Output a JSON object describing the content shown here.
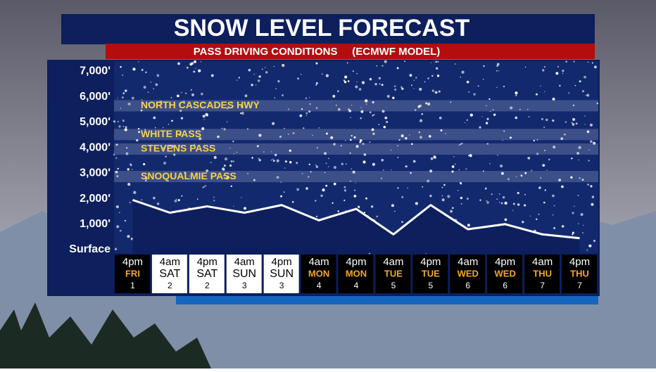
{
  "chart_data": {
    "type": "area",
    "title": "SNOW LEVEL FORECAST",
    "subtitle": "PASS DRIVING CONDITIONS     (ECMWF MODEL)",
    "categories": [
      {
        "time": "4pm",
        "day": "FRI",
        "date": "1",
        "box_color": "#000000",
        "day_color": "#f5a623"
      },
      {
        "time": "4am",
        "day": "SAT",
        "date": "2",
        "box_color": "#ffffff",
        "day_color": "#000000"
      },
      {
        "time": "4pm",
        "day": "SAT",
        "date": "2",
        "box_color": "#ffffff",
        "day_color": "#000000"
      },
      {
        "time": "4am",
        "day": "SUN",
        "date": "3",
        "box_color": "#ffffff",
        "day_color": "#000000"
      },
      {
        "time": "4pm",
        "day": "SUN",
        "date": "3",
        "box_color": "#ffffff",
        "day_color": "#000000"
      },
      {
        "time": "4am",
        "day": "MON",
        "date": "4",
        "box_color": "#000000",
        "day_color": "#f5a623"
      },
      {
        "time": "4pm",
        "day": "MON",
        "date": "4",
        "box_color": "#000000",
        "day_color": "#f5a623"
      },
      {
        "time": "4am",
        "day": "TUE",
        "date": "5",
        "box_color": "#000000",
        "day_color": "#f5a623"
      },
      {
        "time": "4pm",
        "day": "TUE",
        "date": "5",
        "box_color": "#000000",
        "day_color": "#f5a623"
      },
      {
        "time": "4am",
        "day": "WED",
        "date": "6",
        "box_color": "#000000",
        "day_color": "#f5a623"
      },
      {
        "time": "4pm",
        "day": "WED",
        "date": "6",
        "box_color": "#000000",
        "day_color": "#f5a623"
      },
      {
        "time": "4am",
        "day": "THU",
        "date": "7",
        "box_color": "#000000",
        "day_color": "#f5a623"
      },
      {
        "time": "4pm",
        "day": "THU",
        "date": "7",
        "box_color": "#000000",
        "day_color": "#f5a623"
      }
    ],
    "values": [
      1950,
      1450,
      1700,
      1450,
      1750,
      1150,
      1600,
      600,
      1750,
      800,
      1000,
      600,
      450
    ],
    "color": "#0d1f5c",
    "line_color": "#ffffff",
    "ylim": [
      0,
      7400
    ],
    "yticks": [
      {
        "value": 0,
        "label": "Surface"
      },
      {
        "value": 1000,
        "label": "1,000'"
      },
      {
        "value": 2000,
        "label": "2,000'"
      },
      {
        "value": 3000,
        "label": "3,000'"
      },
      {
        "value": 4000,
        "label": "4,000'"
      },
      {
        "value": 5000,
        "label": "5,000'"
      },
      {
        "value": 6000,
        "label": "6,000'"
      },
      {
        "value": 7000,
        "label": "7,000'"
      }
    ],
    "annotations": [
      {
        "text": "NORTH CASCADES HWY",
        "value": 5650
      },
      {
        "text": "WHITE PASS",
        "value": 4520
      },
      {
        "text": "STEVENS PASS",
        "value": 3950
      },
      {
        "text": "SNOQUALMIE PASS",
        "value": 2870
      }
    ]
  }
}
